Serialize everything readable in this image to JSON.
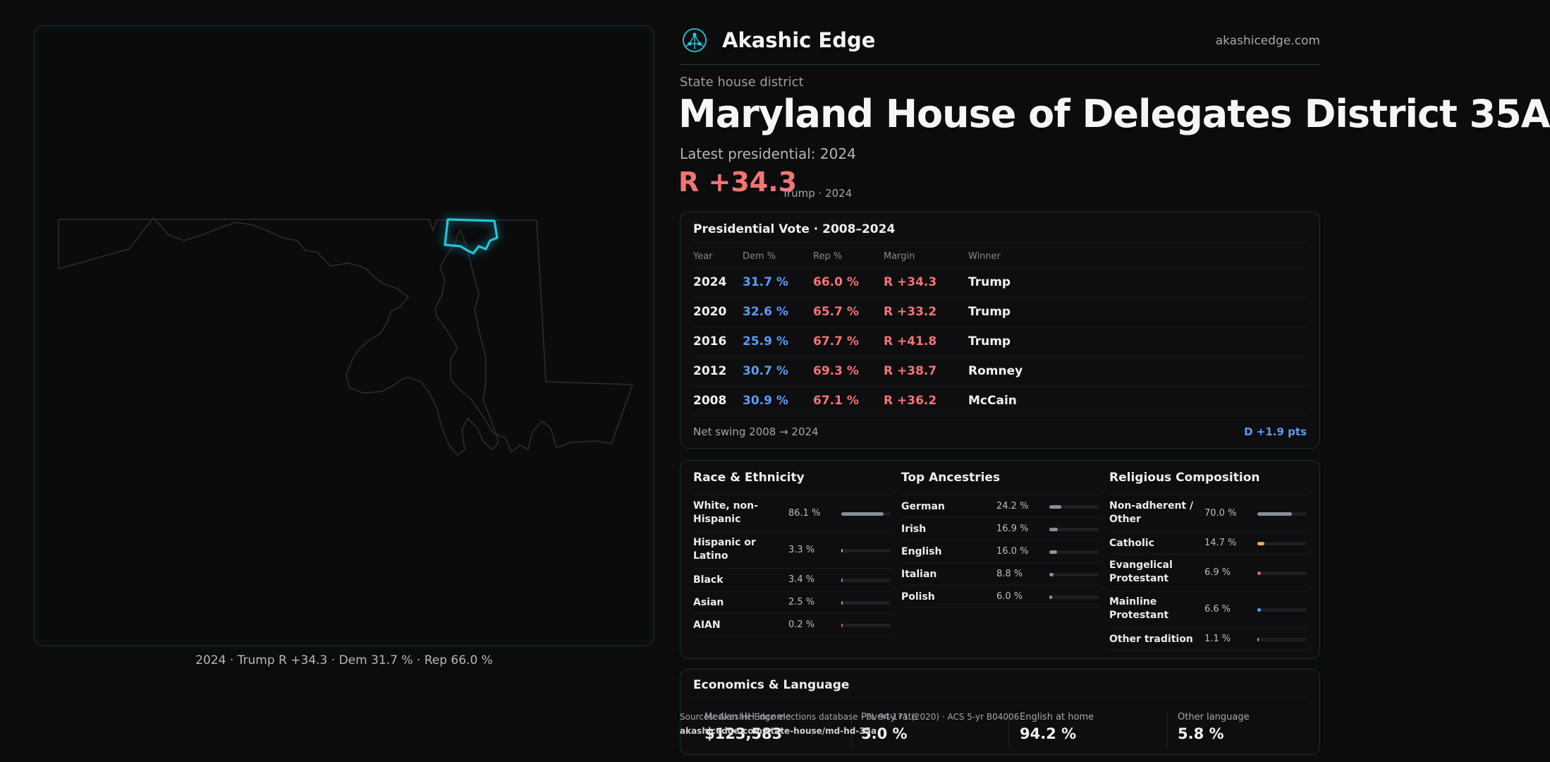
{
  "brand": {
    "name": "Akashic Edge",
    "url": "akashicedge.com",
    "logo_icon": "network-node-logo-icon"
  },
  "eyebrow": "State house district",
  "title": "Maryland House of Delegates District 35A",
  "latest": "Latest presidential: 2024",
  "headline": {
    "margin": "R +34.3",
    "sub": "Trump · 2024"
  },
  "map": {
    "caption": "2024 · Trump R +34.3 · Dem 31.7 % · Rep 66.0 %"
  },
  "presidential": {
    "title": "Presidential Vote · 2008–2024",
    "headers": [
      "Year",
      "Dem %",
      "Rep %",
      "Margin",
      "Winner"
    ],
    "rows": [
      {
        "year": "2024",
        "dem": "31.7 %",
        "rep": "66.0 %",
        "margin": "R +34.3",
        "winner": "Trump"
      },
      {
        "year": "2020",
        "dem": "32.6 %",
        "rep": "65.7 %",
        "margin": "R +33.2",
        "winner": "Trump"
      },
      {
        "year": "2016",
        "dem": "25.9 %",
        "rep": "67.7 %",
        "margin": "R +41.8",
        "winner": "Trump"
      },
      {
        "year": "2012",
        "dem": "30.7 %",
        "rep": "69.3 %",
        "margin": "R +38.7",
        "winner": "Romney"
      },
      {
        "year": "2008",
        "dem": "30.9 %",
        "rep": "67.1 %",
        "margin": "R +36.2",
        "winner": "McCain"
      }
    ],
    "swing_label": "Net swing 2008 → 2024",
    "swing_value": "D +1.9 pts"
  },
  "race": {
    "title": "Race & Ethnicity",
    "rows": [
      {
        "label": "White, non-Hispanic",
        "value": "86.1 %",
        "pct": 86.1,
        "color": "#8a909a"
      },
      {
        "label": "Hispanic or Latino",
        "value": "3.3 %",
        "pct": 3.3,
        "color": "#e6a23c"
      },
      {
        "label": "Black",
        "value": "3.4 %",
        "pct": 3.4,
        "color": "#8a7cf6"
      },
      {
        "label": "Asian",
        "value": "2.5 %",
        "pct": 2.5,
        "color": "#3cc9a8"
      },
      {
        "label": "AIAN",
        "value": "0.2 %",
        "pct": 0.2,
        "color": "#d06060"
      }
    ]
  },
  "ancestry": {
    "title": "Top Ancestries",
    "rows": [
      {
        "label": "German",
        "value": "24.2 %",
        "pct": 24.2,
        "color": "#8a909a"
      },
      {
        "label": "Irish",
        "value": "16.9 %",
        "pct": 16.9,
        "color": "#8a909a"
      },
      {
        "label": "English",
        "value": "16.0 %",
        "pct": 16.0,
        "color": "#8a909a"
      },
      {
        "label": "Italian",
        "value": "8.8 %",
        "pct": 8.8,
        "color": "#8a909a"
      },
      {
        "label": "Polish",
        "value": "6.0 %",
        "pct": 6.0,
        "color": "#8a909a"
      }
    ]
  },
  "religion": {
    "title": "Religious Composition",
    "rows": [
      {
        "label": "Non-adherent / Other",
        "value": "70.0 %",
        "pct": 70.0,
        "color": "#8a909a"
      },
      {
        "label": "Catholic",
        "value": "14.7 %",
        "pct": 14.7,
        "color": "#e6b23c"
      },
      {
        "label": "Evangelical Protestant",
        "value": "6.9 %",
        "pct": 6.9,
        "color": "#e05c5c"
      },
      {
        "label": "Mainline Protestant",
        "value": "6.6 %",
        "pct": 6.6,
        "color": "#5b9cf6"
      },
      {
        "label": "Other tradition",
        "value": "1.1 %",
        "pct": 1.1,
        "color": "#a0a0a8"
      }
    ]
  },
  "economics": {
    "title": "Economics & Language",
    "stats": [
      {
        "label": "Median HH income",
        "value": "$123,583"
      },
      {
        "label": "Poverty rate",
        "value": "5.0 %"
      },
      {
        "label": "English at home",
        "value": "94.2 %"
      },
      {
        "label": "Other language",
        "value": "5.8 %"
      }
    ]
  },
  "source": {
    "text": "Sources: Akashic Edge elections database · PL 94-171 (2020) · ACS 5-yr B04006",
    "url": "akashicedge.com/state-house/md-hd-35a"
  },
  "colors": {
    "accent": "#22c6dc",
    "dem": "#5b9cf6",
    "rep": "#f47474"
  }
}
